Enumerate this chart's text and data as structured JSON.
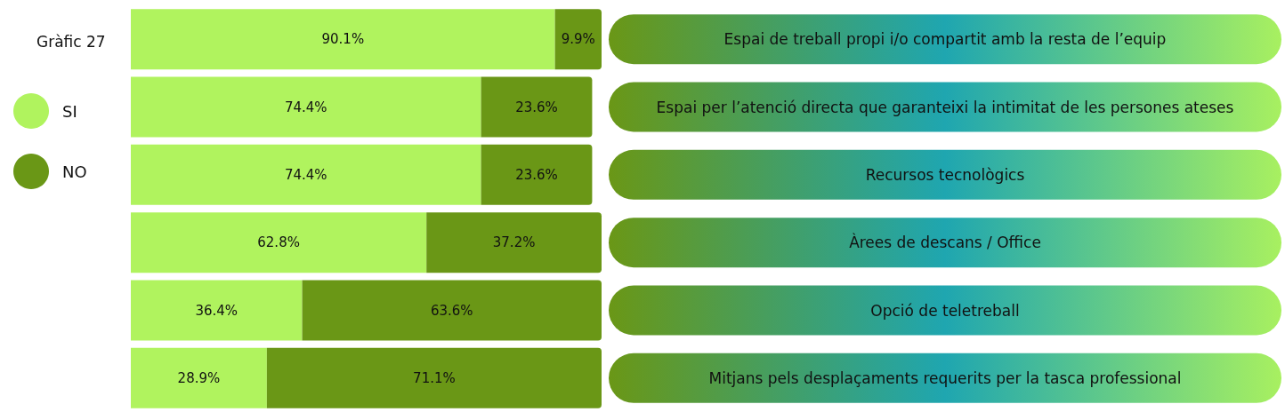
{
  "chart_data": {
    "type": "bar",
    "orientation": "horizontal",
    "stacked": true,
    "title": "Gràfic 27",
    "categories": [
      "Espai de treball propi i/o compartit amb la resta de l’equip",
      "Espai per l’atenció directa que garanteixi la intimitat de les persones ateses",
      "Recursos tecnològics",
      "Àrees de descans / Office",
      "Opció de teletreball",
      "Mitjans pels desplaçaments requerits per la tasca professional"
    ],
    "series": [
      {
        "name": "SI",
        "color": "#b0f35e",
        "values": [
          90.1,
          74.4,
          74.4,
          62.8,
          36.4,
          28.9
        ],
        "value_labels": [
          "90.1%",
          "74.4%",
          "74.4%",
          "62.8%",
          "36.4%",
          "28.9%"
        ]
      },
      {
        "name": "NO",
        "color": "#6a9716",
        "values": [
          9.9,
          23.6,
          23.6,
          37.2,
          63.6,
          71.1
        ],
        "value_labels": [
          "9.9%",
          "23.6%",
          "23.6%",
          "37.2%",
          "63.6%",
          "71.1%"
        ]
      }
    ],
    "xlim": [
      0,
      100
    ],
    "tick_labels": "y",
    "legend": "left"
  }
}
